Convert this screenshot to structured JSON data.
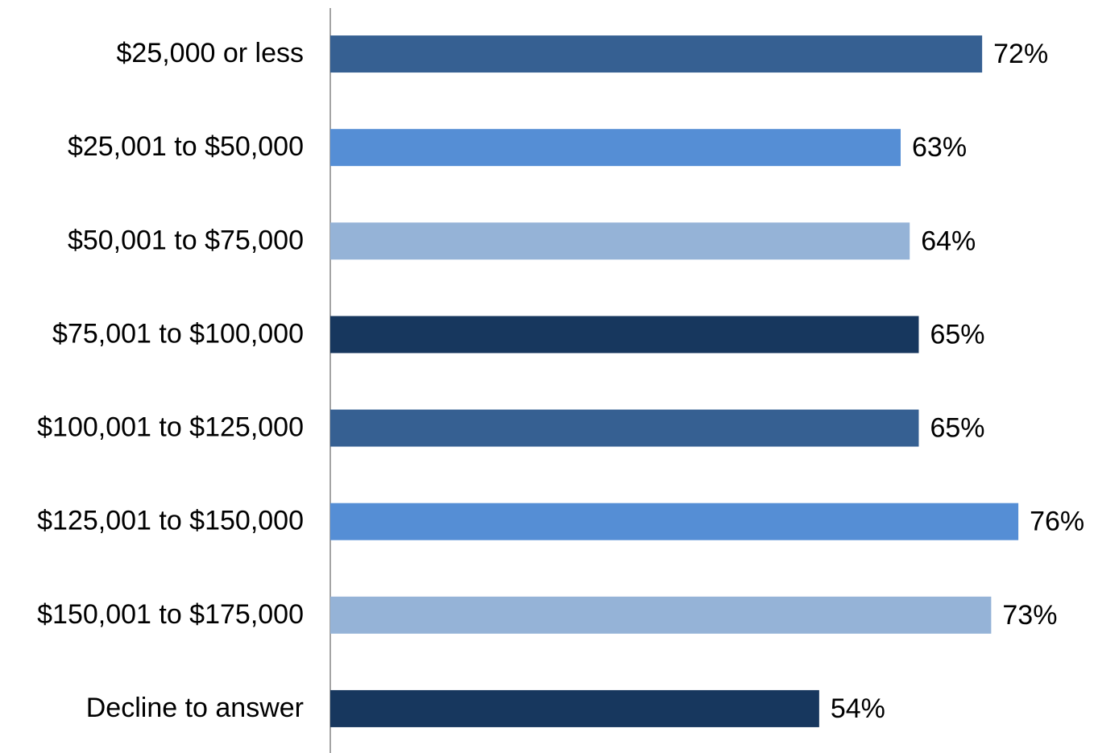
{
  "chart_data": {
    "type": "bar",
    "orientation": "horizontal",
    "categories": [
      "$25,000 or less",
      "$25,001 to $50,000",
      "$50,001 to $75,000",
      "$75,001 to $100,000",
      "$100,001 to $125,000",
      "$125,001 to $150,000",
      "$150,001 to $175,000",
      "Decline to answer"
    ],
    "values": [
      72,
      63,
      64,
      65,
      65,
      76,
      73,
      54
    ],
    "value_labels": [
      "72%",
      "63%",
      "64%",
      "65%",
      "65%",
      "76%",
      "73%",
      "54%"
    ],
    "colors": [
      "#366092",
      "#558ed5",
      "#95b3d7",
      "#17375e",
      "#366092",
      "#558ed5",
      "#95b3d7",
      "#17375e"
    ],
    "xlim": [
      0,
      84
    ]
  }
}
